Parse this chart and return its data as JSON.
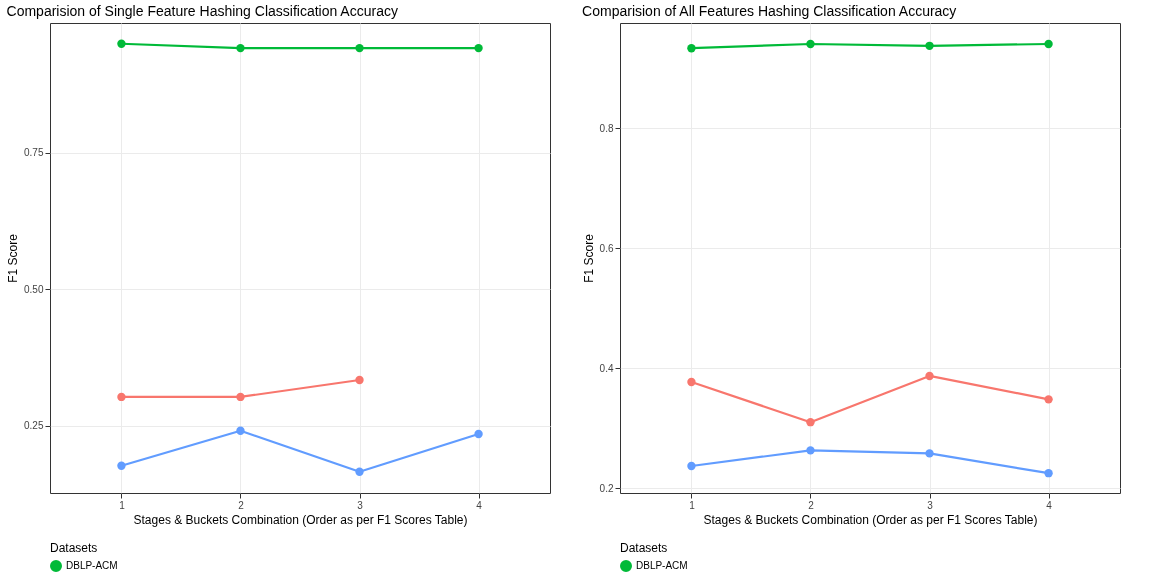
{
  "chart_data": [
    {
      "type": "line",
      "title": "Comparision of Single Feature Hashing Classification Accuracy",
      "xlabel": "Stages & Buckets Combination (Order as per F1 Scores Table)",
      "ylabel": "F1 Score",
      "legend_title": "Datasets",
      "x": [
        1,
        2,
        3,
        4
      ],
      "xlim": [
        0.4,
        4.6
      ],
      "xticks": [
        1,
        2,
        3,
        4
      ],
      "ylim": [
        0.127,
        0.988
      ],
      "yticks": [
        0.25,
        {
          "value": 0.5,
          "label": "0.50"
        },
        0.75
      ],
      "grid": true,
      "legend": "bottom",
      "marker": "circle",
      "series": [
        {
          "color": "#f8766d",
          "values": [
            0.303,
            0.303,
            0.334,
            null
          ]
        },
        {
          "name": "DBLP-ACM",
          "color": "#00ba38",
          "values": [
            0.95,
            0.942,
            0.942,
            0.942
          ]
        },
        {
          "color": "#619cff",
          "values": [
            0.177,
            0.241,
            0.166,
            0.235
          ]
        }
      ]
    },
    {
      "type": "line",
      "title": "Comparision of All Features Hashing Classification Accuracy",
      "xlabel": "Stages & Buckets Combination (Order as per F1 Scores Table)",
      "ylabel": "F1 Score",
      "legend_title": "Datasets",
      "x": [
        1,
        2,
        3,
        4
      ],
      "xlim": [
        0.4,
        4.6
      ],
      "xticks": [
        1,
        2,
        3,
        4
      ],
      "ylim": [
        0.192,
        0.975
      ],
      "yticks": [
        0.2,
        0.4,
        0.6,
        0.8
      ],
      "grid": true,
      "legend": "bottom",
      "marker": "circle",
      "series": [
        {
          "color": "#f8766d",
          "values": [
            0.377,
            0.31,
            0.387,
            0.348
          ]
        },
        {
          "name": "DBLP-ACM",
          "color": "#00ba38",
          "values": [
            0.933,
            0.94,
            0.937,
            0.94
          ]
        },
        {
          "color": "#619cff",
          "values": [
            0.237,
            0.263,
            0.258,
            0.225
          ]
        }
      ]
    }
  ]
}
